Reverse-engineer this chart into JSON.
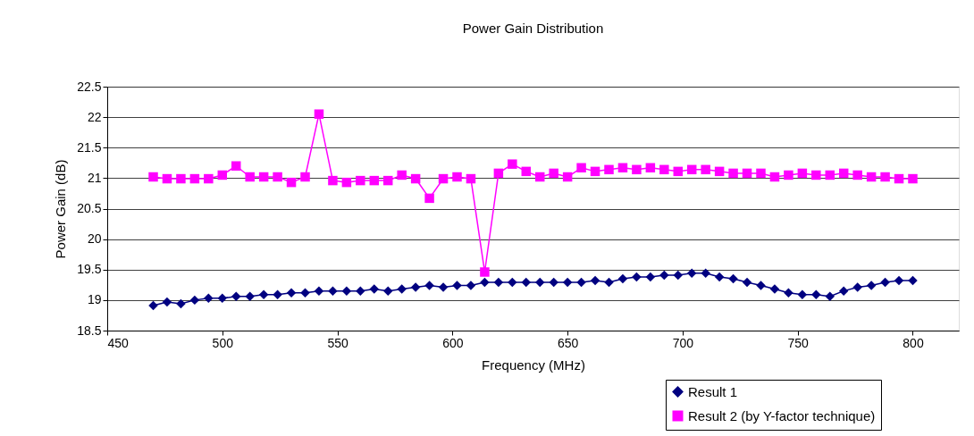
{
  "chart_data": {
    "type": "line",
    "title": "Power Gain Distribution",
    "xlabel": "Frequency (MHz)",
    "ylabel": "Power Gain (dB)",
    "x": [
      470,
      476,
      482,
      488,
      494,
      500,
      506,
      512,
      518,
      524,
      530,
      536,
      542,
      548,
      554,
      560,
      566,
      572,
      578,
      584,
      590,
      596,
      602,
      608,
      614,
      620,
      626,
      632,
      638,
      644,
      650,
      656,
      662,
      668,
      674,
      680,
      686,
      692,
      698,
      704,
      710,
      716,
      722,
      728,
      734,
      740,
      746,
      752,
      758,
      764,
      770,
      776,
      782,
      788,
      794,
      800
    ],
    "series": [
      {
        "name": "Result 1",
        "color": "#000080",
        "marker": "diamond",
        "values": [
          18.91,
          18.97,
          18.94,
          19.0,
          19.03,
          19.03,
          19.06,
          19.06,
          19.09,
          19.09,
          19.12,
          19.12,
          19.15,
          19.15,
          19.15,
          19.15,
          19.18,
          19.15,
          19.18,
          19.21,
          19.24,
          19.21,
          19.24,
          19.24,
          19.29,
          19.29,
          19.29,
          19.29,
          19.29,
          19.29,
          19.29,
          19.29,
          19.32,
          19.29,
          19.35,
          19.38,
          19.38,
          19.41,
          19.41,
          19.44,
          19.44,
          19.38,
          19.35,
          19.29,
          19.24,
          19.18,
          19.12,
          19.09,
          19.09,
          19.06,
          19.15,
          19.21,
          19.24,
          19.29,
          19.32,
          19.32
        ]
      },
      {
        "name": "Result 2 (by Y-factor technique)",
        "color": "#ff00ff",
        "marker": "square",
        "values": [
          21.02,
          20.99,
          20.99,
          20.99,
          20.99,
          21.05,
          21.2,
          21.02,
          21.02,
          21.02,
          20.93,
          21.02,
          22.05,
          20.96,
          20.93,
          20.96,
          20.96,
          20.96,
          21.05,
          20.99,
          20.67,
          20.99,
          21.02,
          20.99,
          19.46,
          21.08,
          21.23,
          21.11,
          21.02,
          21.08,
          21.02,
          21.17,
          21.11,
          21.14,
          21.17,
          21.14,
          21.17,
          21.14,
          21.11,
          21.14,
          21.14,
          21.11,
          21.08,
          21.08,
          21.08,
          21.02,
          21.05,
          21.08,
          21.05,
          21.05,
          21.08,
          21.05,
          21.02,
          21.02,
          20.99,
          20.99
        ]
      }
    ],
    "xlim": [
      450,
      820
    ],
    "xticks": [
      450,
      500,
      550,
      600,
      650,
      700,
      750,
      800
    ],
    "ylim": [
      18.5,
      22.5
    ],
    "yticks": [
      18.5,
      19,
      19.5,
      20,
      20.5,
      21,
      21.5,
      22,
      22.5
    ],
    "grid": "y",
    "legend": "bottom right",
    "line_style": "solid"
  }
}
